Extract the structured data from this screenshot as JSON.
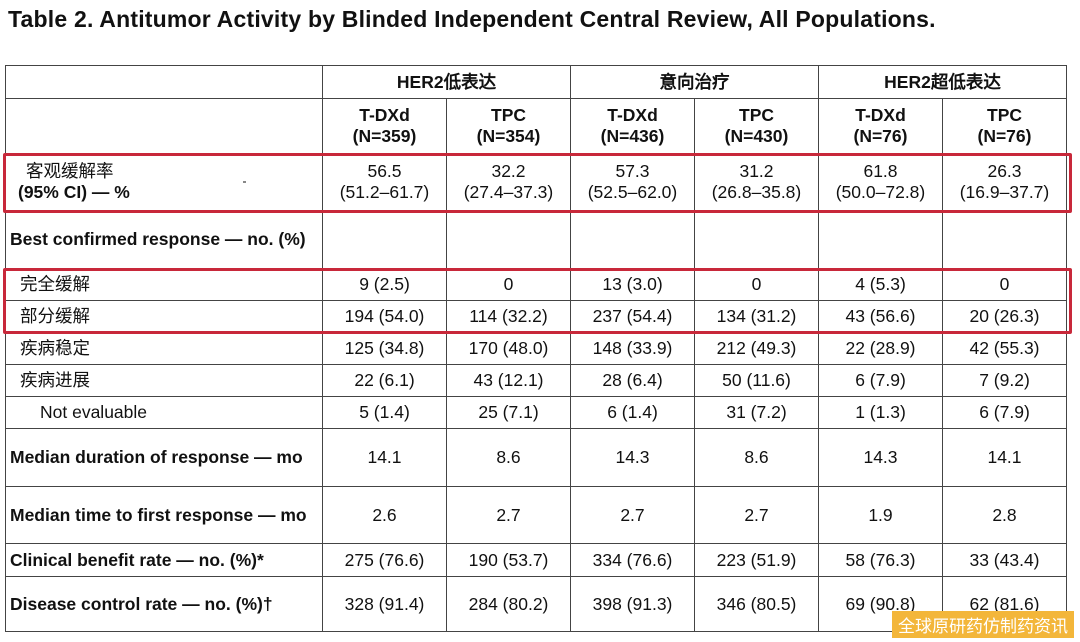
{
  "title": "Table 2. Antitumor Activity by Blinded Independent Central Review, All Populations.",
  "groups": [
    "HER2低表达",
    "意向治疗",
    "HER2超低表达"
  ],
  "arms": [
    {
      "name": "T-DXd",
      "n": "(N=359)"
    },
    {
      "name": "TPC",
      "n": "(N=354)"
    },
    {
      "name": "T-DXd",
      "n": "(N=436)"
    },
    {
      "name": "TPC",
      "n": "(N=430)"
    },
    {
      "name": "T-DXd",
      "n": "(N=76)"
    },
    {
      "name": "TPC",
      "n": "(N=76)"
    }
  ],
  "rows": [
    {
      "label1": "客观缓解率",
      "label2": "(95% CI) — %",
      "values": [
        {
          "a": "56.5",
          "b": "(51.2–61.7)"
        },
        {
          "a": "32.2",
          "b": "(27.4–37.3)"
        },
        {
          "a": "57.3",
          "b": "(52.5–62.0)"
        },
        {
          "a": "31.2",
          "b": "(26.8–35.8)"
        },
        {
          "a": "61.8",
          "b": "(50.0–72.8)"
        },
        {
          "a": "26.3",
          "b": "(16.9–37.7)"
        }
      ]
    },
    {
      "label": "Best confirmed response — no. (%)",
      "values": [
        "",
        "",
        "",
        "",
        "",
        ""
      ]
    },
    {
      "label": "完全缓解",
      "values": [
        "9 (2.5)",
        "0",
        "13 (3.0)",
        "0",
        "4 (5.3)",
        "0"
      ]
    },
    {
      "label": "部分缓解",
      "values": [
        "194 (54.0)",
        "114 (32.2)",
        "237 (54.4)",
        "134 (31.2)",
        "43 (56.6)",
        "20 (26.3)"
      ]
    },
    {
      "label": "疾病稳定",
      "values": [
        "125 (34.8)",
        "170 (48.0)",
        "148 (33.9)",
        "212 (49.3)",
        "22 (28.9)",
        "42 (55.3)"
      ]
    },
    {
      "label": "疾病进展",
      "values": [
        "22 (6.1)",
        "43 (12.1)",
        "28 (6.4)",
        "50 (11.6)",
        "6 (7.9)",
        "7 (9.2)"
      ]
    },
    {
      "label": "Not evaluable",
      "values": [
        "5 (1.4)",
        "25 (7.1)",
        "6 (1.4)",
        "31 (7.2)",
        "1 (1.3)",
        "6 (7.9)"
      ]
    },
    {
      "label": "Median duration of response — mo",
      "values": [
        "14.1",
        "8.6",
        "14.3",
        "8.6",
        "14.3",
        "14.1"
      ]
    },
    {
      "label": "Median time to first response — mo",
      "values": [
        "2.6",
        "2.7",
        "2.7",
        "2.7",
        "1.9",
        "2.8"
      ]
    },
    {
      "label": "Clinical benefit rate — no. (%)*",
      "values": [
        "275 (76.6)",
        "190 (53.7)",
        "334 (76.6)",
        "223 (51.9)",
        "58 (76.3)",
        "33 (43.4)"
      ]
    },
    {
      "label": "Disease control rate — no. (%)†",
      "values": [
        "328 (91.4)",
        "284 (80.2)",
        "398 (91.3)",
        "346 (80.5)",
        "69 (90.8)",
        "62 (81.6)"
      ]
    }
  ],
  "watermark": "全球原研药仿制药资讯",
  "highlight_color": "#c8283a"
}
